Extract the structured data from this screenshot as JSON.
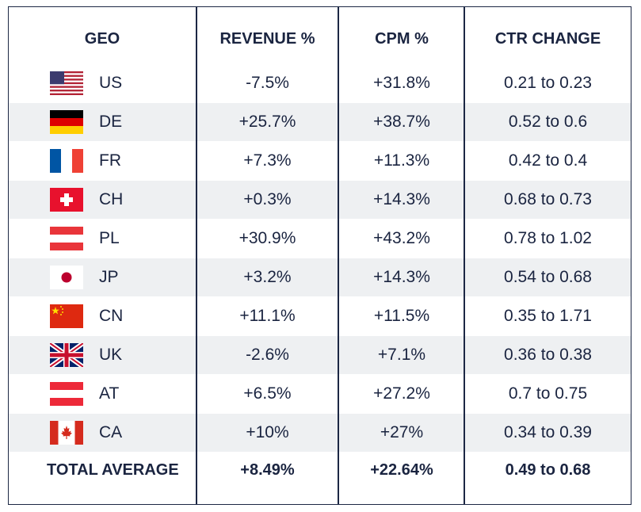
{
  "headers": {
    "geo": "GEO",
    "revenue": "REVENUE %",
    "cpm": "CPM %",
    "ctr": "CTR CHANGE"
  },
  "rows": [
    {
      "code": "US",
      "flag": "us-flag-icon",
      "revenue": "-7.5%",
      "cpm": "+31.8%",
      "ctr": "0.21 to 0.23"
    },
    {
      "code": "DE",
      "flag": "de-flag-icon",
      "revenue": "+25.7%",
      "cpm": "+38.7%",
      "ctr": "0.52 to 0.6"
    },
    {
      "code": "FR",
      "flag": "fr-flag-icon",
      "revenue": "+7.3%",
      "cpm": "+11.3%",
      "ctr": "0.42 to 0.4"
    },
    {
      "code": "CH",
      "flag": "ch-flag-icon",
      "revenue": "+0.3%",
      "cpm": "+14.3%",
      "ctr": "0.68 to 0.73"
    },
    {
      "code": "PL",
      "flag": "pl-flag-icon",
      "revenue": "+30.9%",
      "cpm": "+43.2%",
      "ctr": "0.78 to 1.02"
    },
    {
      "code": "JP",
      "flag": "jp-flag-icon",
      "revenue": "+3.2%",
      "cpm": "+14.3%",
      "ctr": "0.54 to 0.68"
    },
    {
      "code": "CN",
      "flag": "cn-flag-icon",
      "revenue": "+11.1%",
      "cpm": "+11.5%",
      "ctr": "0.35 to 1.71"
    },
    {
      "code": "UK",
      "flag": "uk-flag-icon",
      "revenue": "-2.6%",
      "cpm": "+7.1%",
      "ctr": "0.36 to 0.38"
    },
    {
      "code": "AT",
      "flag": "at-flag-icon",
      "revenue": "+6.5%",
      "cpm": "+27.2%",
      "ctr": "0.7 to 0.75"
    },
    {
      "code": "CA",
      "flag": "ca-flag-icon",
      "revenue": "+10%",
      "cpm": "+27%",
      "ctr": "0.34 to 0.39"
    }
  ],
  "total": {
    "label": "TOTAL AVERAGE",
    "revenue": "+8.49%",
    "cpm": "+22.64%",
    "ctr": "0.49 to 0.68"
  },
  "colors": {
    "border": "#1c2744",
    "text": "#1a2440",
    "alt_row": "#eef0f2"
  }
}
